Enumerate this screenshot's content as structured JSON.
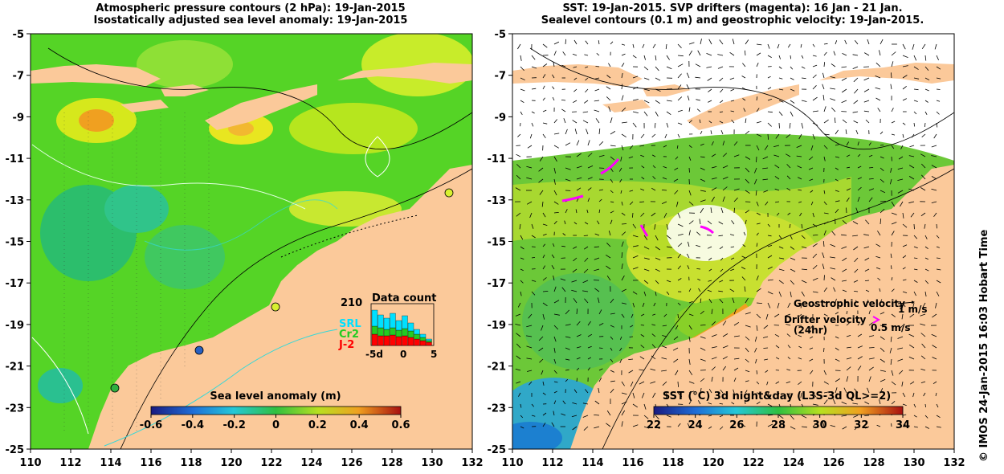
{
  "left_panel": {
    "title_line1": "Atmospheric pressure contours (2 hPa): 19-Jan-2015",
    "title_line2": "Isostatically adjusted sea level anomaly: 19-Jan-2015",
    "colorbar": {
      "label": "Sea level anomaly (m)",
      "ticks": [
        "-0.6",
        "-0.4",
        "-0.2",
        "0",
        "0.2",
        "0.4",
        "0.6"
      ],
      "range": [
        -0.6,
        0.6
      ]
    },
    "inset": {
      "title": "Data count",
      "max_label": "210",
      "x_ticks": [
        "-5d",
        "0",
        "5"
      ],
      "legend": [
        {
          "label": "SRL",
          "color": "#00e0ff"
        },
        {
          "label": "Cr2",
          "color": "#22cc22"
        },
        {
          "label": "J-2",
          "color": "#ff0000"
        }
      ]
    }
  },
  "right_panel": {
    "title_line1": "SST: 19-Jan-2015. SVP drifters (magenta): 16 Jan - 21 Jan.",
    "title_line2": "Sealevel contours (0.1 m) and geostrophic velocity: 19-Jan-2015.",
    "colorbar": {
      "label": "SST (°C) 3d night&day (L3S-3d QL>=2)",
      "ticks": [
        "22",
        "24",
        "26",
        "28",
        "30",
        "32",
        "34"
      ],
      "range": [
        22,
        34
      ]
    },
    "legend": {
      "geo_label": "Geostrophic velocity",
      "geo_scale": "1 m/s",
      "drifter_label_1": "Drifter velocity",
      "drifter_label_2": "(24hr)",
      "drifter_scale": "0.5 m/s"
    }
  },
  "axes": {
    "x_ticks": [
      "110",
      "112",
      "114",
      "116",
      "118",
      "120",
      "122",
      "124",
      "126",
      "128",
      "130",
      "132"
    ],
    "y_ticks": [
      "-5",
      "-7",
      "-9",
      "-11",
      "-13",
      "-15",
      "-17",
      "-19",
      "-21",
      "-23",
      "-25"
    ],
    "lon_range": [
      110,
      132
    ],
    "lat_range": [
      -25,
      -5
    ]
  },
  "credit": "© IMOS 24-Jan-2015 16:03 Hobart Time",
  "colors": {
    "land": "#fbc99a",
    "ocean_green": "#55d426",
    "sst_bg": "#ffffff"
  }
}
